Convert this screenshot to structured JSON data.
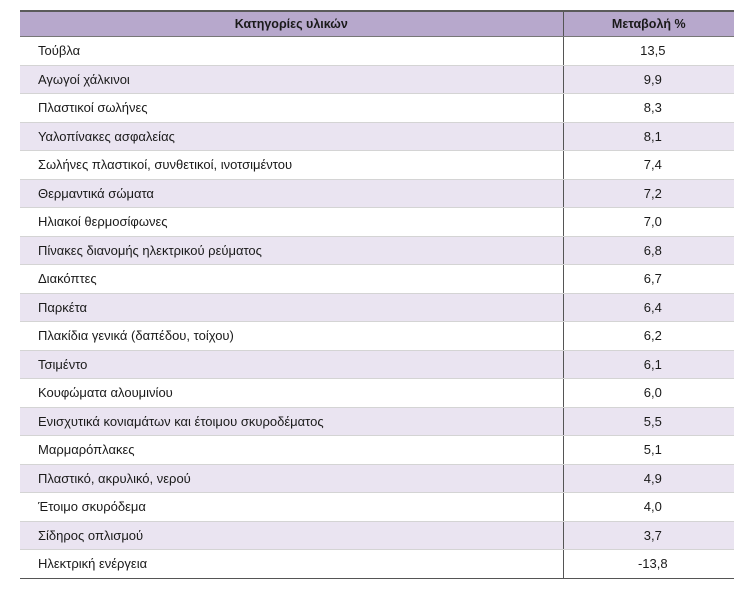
{
  "table": {
    "headers": [
      "Κατηγορίες υλικών",
      "Μεταβολή %"
    ],
    "rows": [
      {
        "category": "Τούβλα",
        "change": "13,5"
      },
      {
        "category": "Αγωγοί χάλκινοι",
        "change": "9,9"
      },
      {
        "category": "Πλαστικοί σωλήνες",
        "change": "8,3"
      },
      {
        "category": "Υαλοπίνακες ασφαλείας",
        "change": "8,1"
      },
      {
        "category": "Σωλήνες πλαστικοί, συνθετικοί, ινοτσιμέντου",
        "change": "7,4"
      },
      {
        "category": "Θερμαντικά σώματα",
        "change": "7,2"
      },
      {
        "category": "Ηλιακοί θερμοσίφωνες",
        "change": "7,0"
      },
      {
        "category": "Πίνακες διανομής ηλεκτρικού ρεύματος",
        "change": "6,8"
      },
      {
        "category": "Διακόπτες",
        "change": "6,7"
      },
      {
        "category": "Παρκέτα",
        "change": "6,4"
      },
      {
        "category": "Πλακίδια γενικά (δαπέδου, τοίχου)",
        "change": "6,2"
      },
      {
        "category": "Τσιμέντο",
        "change": "6,1"
      },
      {
        "category": "Κουφώματα αλουμινίου",
        "change": "6,0"
      },
      {
        "category": "Ενισχυτικά κονιαμάτων και έτοιμου σκυροδέματος",
        "change": "5,5"
      },
      {
        "category": "Μαρμαρόπλακες",
        "change": "5,1"
      },
      {
        "category": "Πλαστικό, ακρυλικό, νερού",
        "change": "4,9"
      },
      {
        "category": "Έτοιμο σκυρόδεμα",
        "change": "4,0"
      },
      {
        "category": "Σίδηρος οπλισμού",
        "change": "3,7"
      },
      {
        "category": "Ηλεκτρική ενέργεια",
        "change": "-13,8"
      }
    ]
  },
  "colors": {
    "header_bg": "#b7a8cc",
    "alt_row_bg": "#eae4f1"
  }
}
